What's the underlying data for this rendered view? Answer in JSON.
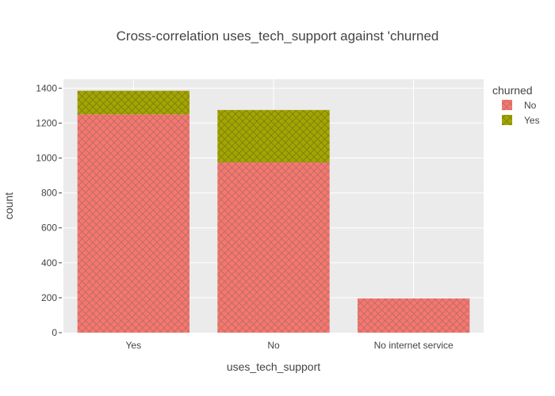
{
  "chart_data": {
    "type": "bar",
    "barmode": "stack",
    "title": "Cross-correlation uses_tech_support against 'churned",
    "xlabel": "uses_tech_support",
    "ylabel": "count",
    "categories": [
      "Yes",
      "No",
      "No internet service"
    ],
    "ylim": [
      0,
      1450
    ],
    "yticks": [
      0,
      200,
      400,
      600,
      800,
      1000,
      1200,
      1400
    ],
    "grid": true,
    "legend_title": "churned",
    "legend_position": "top-right",
    "series": [
      {
        "name": "No",
        "color": "#f8766d",
        "pattern": "crosshatch",
        "values": [
          1250,
          975,
          196
        ]
      },
      {
        "name": "Yes",
        "color": "#a3a500",
        "pattern": "crosshatch",
        "values": [
          135,
          300,
          0
        ]
      }
    ]
  }
}
